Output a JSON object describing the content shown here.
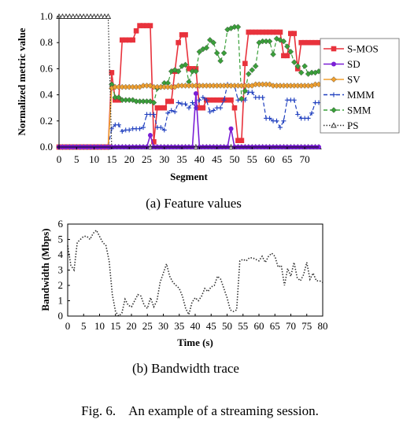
{
  "figure_caption": "Fig. 6.    An example of a streaming session.",
  "chart_data": [
    {
      "type": "line",
      "caption": "(a) Feature values",
      "xlabel": "Segment",
      "ylabel": "Normalized metric value",
      "xlim": [
        0,
        74
      ],
      "ylim": [
        0,
        1.0
      ],
      "xticks": [
        "0",
        "5",
        "10",
        "15",
        "20",
        "25",
        "30",
        "35",
        "40",
        "45",
        "50",
        "55",
        "60",
        "65",
        "70"
      ],
      "yticks": [
        "0.0",
        "0.2",
        "0.4",
        "0.6",
        "0.8",
        "1.0"
      ],
      "grid": false,
      "legend": "right",
      "x": [
        0,
        1,
        2,
        3,
        4,
        5,
        6,
        7,
        8,
        9,
        10,
        11,
        12,
        13,
        14,
        15,
        16,
        17,
        18,
        19,
        20,
        21,
        22,
        23,
        24,
        25,
        26,
        27,
        28,
        29,
        30,
        31,
        32,
        33,
        34,
        35,
        36,
        37,
        38,
        39,
        40,
        41,
        42,
        43,
        44,
        45,
        46,
        47,
        48,
        49,
        50,
        51,
        52,
        53,
        54,
        55,
        56,
        57,
        58,
        59,
        60,
        61,
        62,
        63,
        64,
        65,
        66,
        67,
        68,
        69,
        70,
        71,
        72,
        73,
        74
      ],
      "series": [
        {
          "name": "S-MOS",
          "color": "#e8323c",
          "marker": "square",
          "dash": "solid",
          "values": [
            0,
            0,
            0,
            0,
            0,
            0,
            0,
            0,
            0,
            0,
            0,
            0,
            0,
            0,
            0,
            0.57,
            0.36,
            0.36,
            0.82,
            0.82,
            0.82,
            0.82,
            0.89,
            0.93,
            0.93,
            0.93,
            0.93,
            0.04,
            0.3,
            0.3,
            0.3,
            0.35,
            0.35,
            0.58,
            0.8,
            0.86,
            0.86,
            0.6,
            0.6,
            0.6,
            0.3,
            0.3,
            0.36,
            0.36,
            0.36,
            0.36,
            0.36,
            0.36,
            0.36,
            0.36,
            0.3,
            0.05,
            0.05,
            0.64,
            0.88,
            0.88,
            0.88,
            0.88,
            0.88,
            0.88,
            0.88,
            0.88,
            0.88,
            0.88,
            0.7,
            0.7,
            0.87,
            0.87,
            0.6,
            0.8,
            0.8,
            0.8,
            0.8,
            0.8,
            0.8
          ]
        },
        {
          "name": "SD",
          "color": "#7a1fd6",
          "marker": "circle",
          "dash": "solid",
          "values": [
            0,
            0,
            0,
            0,
            0,
            0,
            0,
            0,
            0,
            0,
            0,
            0,
            0,
            0,
            0,
            0,
            0,
            0,
            0,
            0,
            0,
            0,
            0,
            0,
            0,
            0,
            0.09,
            0,
            0,
            0,
            0,
            0,
            0,
            0,
            0,
            0,
            0,
            0,
            0,
            0.41,
            0,
            0,
            0,
            0,
            0,
            0,
            0,
            0,
            0,
            0.14,
            0,
            0,
            0,
            0,
            0,
            0,
            0,
            0,
            0,
            0,
            0,
            0,
            0,
            0,
            0,
            0,
            0,
            0,
            0,
            0,
            0,
            0,
            0,
            0,
            0
          ]
        },
        {
          "name": "SV",
          "color": "#f0a030",
          "marker": "diamond",
          "dash": "solid",
          "values": [
            0,
            0,
            0,
            0,
            0,
            0,
            0,
            0,
            0,
            0,
            0,
            0,
            0,
            0,
            0,
            0.45,
            0.46,
            0.46,
            0.46,
            0.46,
            0.46,
            0.46,
            0.46,
            0.46,
            0.47,
            0.47,
            0.47,
            0.46,
            0.46,
            0.46,
            0.46,
            0.46,
            0.46,
            0.46,
            0.47,
            0.47,
            0.47,
            0.47,
            0.47,
            0.47,
            0.47,
            0.47,
            0.47,
            0.47,
            0.47,
            0.47,
            0.47,
            0.47,
            0.47,
            0.47,
            0.47,
            0.47,
            0.47,
            0.47,
            0.47,
            0.47,
            0.48,
            0.48,
            0.48,
            0.48,
            0.48,
            0.47,
            0.47,
            0.47,
            0.47,
            0.47,
            0.47,
            0.47,
            0.47,
            0.47,
            0.47,
            0.47,
            0.47,
            0.48,
            0.48
          ]
        },
        {
          "name": "MMM",
          "color": "#1f3fbf",
          "marker": "plus",
          "dash": "dash",
          "values": [
            0,
            0,
            0,
            0,
            0,
            0,
            0,
            0,
            0,
            0,
            0,
            0,
            0,
            0,
            0,
            0.14,
            0.17,
            0.17,
            0.12,
            0.13,
            0.13,
            0.14,
            0.14,
            0.14,
            0.15,
            0.25,
            0.25,
            0.25,
            0.15,
            0.15,
            0.13,
            0.26,
            0.28,
            0.27,
            0.34,
            0.33,
            0.33,
            0.3,
            0.34,
            0.3,
            0.36,
            0.38,
            0.36,
            0.27,
            0.28,
            0.3,
            0.3,
            0.36,
            0.48,
            0.47,
            0.47,
            0.36,
            0.36,
            0.36,
            0.42,
            0.42,
            0.38,
            0.38,
            0.38,
            0.22,
            0.22,
            0.2,
            0.2,
            0.15,
            0.2,
            0.36,
            0.36,
            0.36,
            0.25,
            0.22,
            0.22,
            0.22,
            0.26,
            0.34,
            0.34
          ]
        },
        {
          "name": "SMM",
          "color": "#3aa03a",
          "marker": "diamond",
          "dash": "dash",
          "values": [
            0,
            0,
            0,
            0,
            0,
            0,
            0,
            0,
            0,
            0,
            0,
            0,
            0,
            0,
            0,
            0.48,
            0.38,
            0.38,
            0.36,
            0.36,
            0.36,
            0.36,
            0.35,
            0.35,
            0.35,
            0.35,
            0.35,
            0.34,
            0.45,
            0.46,
            0.49,
            0.49,
            0.58,
            0.59,
            0.58,
            0.62,
            0.63,
            0.5,
            0.58,
            0.58,
            0.73,
            0.75,
            0.76,
            0.82,
            0.8,
            0.72,
            0.66,
            0.72,
            0.9,
            0.91,
            0.92,
            0.92,
            0.37,
            0.43,
            0.56,
            0.59,
            0.62,
            0.8,
            0.81,
            0.81,
            0.81,
            0.71,
            0.83,
            0.82,
            0.81,
            0.77,
            0.73,
            0.65,
            0.62,
            0.57,
            0.62,
            0.56,
            0.57,
            0.57,
            0.58
          ]
        },
        {
          "name": "PS",
          "color": "#303030",
          "marker": "triangle",
          "dash": "dot",
          "values": [
            1,
            1,
            1,
            1,
            1,
            1,
            1,
            1,
            1,
            1,
            1,
            1,
            1,
            1,
            1,
            0,
            0,
            0,
            0,
            0,
            0,
            0,
            0,
            0,
            0,
            0,
            0,
            0,
            0,
            0,
            0,
            0,
            0,
            0,
            0,
            0,
            0,
            0,
            0,
            0,
            0,
            0,
            0,
            0,
            0,
            0,
            0,
            0,
            0,
            0,
            0,
            0,
            0,
            0,
            0,
            0,
            0,
            0,
            0,
            0,
            0,
            0,
            0,
            0,
            0,
            0,
            0,
            0,
            0,
            0,
            0,
            0,
            0,
            0,
            0
          ]
        }
      ]
    },
    {
      "type": "line",
      "caption": "(b) Bandwidth trace",
      "xlabel": "Time (s)",
      "ylabel": "Bandwidth (Mbps)",
      "xlim": [
        0,
        80
      ],
      "ylim": [
        0,
        6
      ],
      "xticks": [
        "0",
        "5",
        "10",
        "15",
        "20",
        "25",
        "30",
        "35",
        "40",
        "45",
        "50",
        "55",
        "60",
        "65",
        "70",
        "75",
        "80"
      ],
      "yticks": [
        "0",
        "1",
        "2",
        "3",
        "4",
        "5",
        "6"
      ],
      "grid": false,
      "legend": "none",
      "x": [
        0,
        1,
        2,
        3,
        4,
        5,
        6,
        7,
        8,
        9,
        10,
        11,
        12,
        13,
        14,
        15,
        16,
        17,
        18,
        19,
        20,
        21,
        22,
        23,
        24,
        25,
        26,
        27,
        28,
        29,
        30,
        31,
        32,
        33,
        34,
        35,
        36,
        37,
        38,
        39,
        40,
        41,
        42,
        43,
        44,
        45,
        46,
        47,
        48,
        49,
        50,
        51,
        52,
        53,
        54,
        55,
        56,
        57,
        58,
        59,
        60,
        61,
        62,
        63,
        64,
        65,
        66,
        67,
        68,
        69,
        70,
        71,
        72,
        73,
        74,
        75,
        76,
        77,
        78,
        79,
        80
      ],
      "series": [
        {
          "name": "",
          "color": "#303030",
          "dash": "dot",
          "values": [
            4.6,
            3.3,
            3.0,
            4.8,
            5.0,
            5.2,
            5.2,
            5.0,
            5.4,
            5.6,
            5.2,
            4.8,
            4.6,
            3.6,
            1.4,
            0.3,
            0.0,
            0.2,
            1.1,
            0.7,
            0.6,
            1.0,
            1.4,
            1.3,
            0.7,
            0.5,
            1.2,
            0.6,
            1.0,
            2.2,
            2.8,
            3.4,
            2.6,
            2.2,
            2.0,
            1.8,
            1.3,
            0.5,
            0.1,
            0.9,
            1.2,
            1.0,
            1.3,
            1.8,
            1.6,
            1.9,
            2.0,
            2.6,
            2.4,
            1.8,
            1.2,
            0.4,
            0.3,
            0.4,
            3.6,
            3.7,
            3.6,
            3.8,
            3.8,
            3.7,
            3.6,
            3.9,
            3.5,
            3.9,
            4.1,
            3.9,
            3.2,
            3.3,
            2.0,
            3.1,
            2.6,
            3.5,
            2.5,
            2.3,
            2.7,
            3.5,
            2.4,
            2.8,
            2.3,
            2.3,
            2.2
          ]
        }
      ]
    }
  ]
}
